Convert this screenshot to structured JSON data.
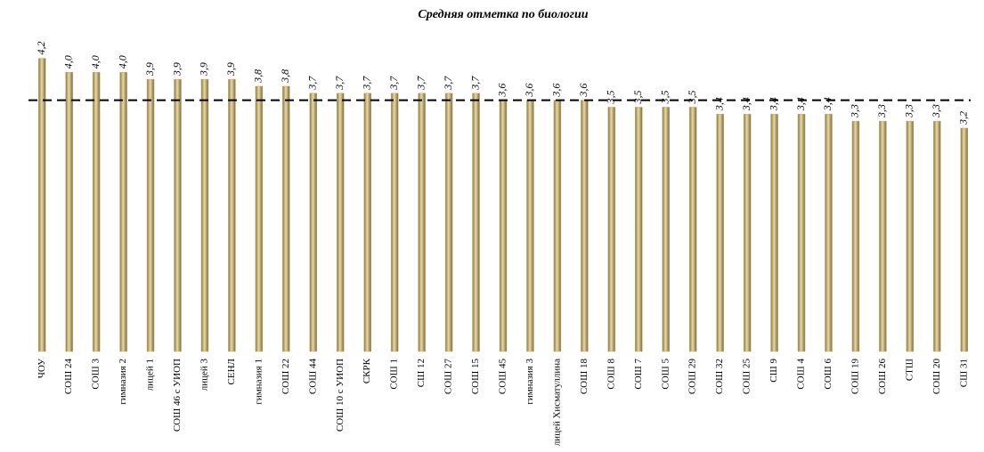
{
  "chart_data": {
    "type": "bar",
    "title": "Средняя отметка по биологии",
    "categories": [
      "ЧОУ",
      "СОШ 24",
      "СОШ 3",
      "гимназия 2",
      "лицей 1",
      "СОШ 46 с УИОП",
      "лицей 3",
      "СЕНЛ",
      "гимназия 1",
      "СОШ 22",
      "СОШ 44",
      "СОШ 10 с УИОП",
      "СКРК",
      "СОШ 1",
      "СШ 12",
      "СОШ 27",
      "СОШ 15",
      "СОШ 45",
      "гимназия 3",
      "лицей Хисматуллина",
      "СОШ 18",
      "СОШ 8",
      "СОШ 7",
      "СОШ 5",
      "СОШ 29",
      "СОШ 32",
      "СОШ 25",
      "СШ 9",
      "СОШ 4",
      "СОШ 6",
      "СОШ 19",
      "СОШ 26",
      "СТШ",
      "СОШ 20",
      "СШ 31"
    ],
    "values": [
      4.2,
      4.0,
      4.0,
      4.0,
      3.9,
      3.9,
      3.9,
      3.9,
      3.8,
      3.8,
      3.7,
      3.7,
      3.7,
      3.7,
      3.7,
      3.7,
      3.7,
      3.6,
      3.6,
      3.6,
      3.6,
      3.5,
      3.5,
      3.5,
      3.5,
      3.4,
      3.4,
      3.4,
      3.4,
      3.4,
      3.3,
      3.3,
      3.3,
      3.3,
      3.2
    ],
    "value_labels": [
      "4,2",
      "4,0",
      "4,0",
      "4,0",
      "3,9",
      "3,9",
      "3,9",
      "3,9",
      "3,8",
      "3,8",
      "3,7",
      "3,7",
      "3,7",
      "3,7",
      "3,7",
      "3,7",
      "3,7",
      "3,6",
      "3,6",
      "3,6",
      "3,6",
      "3,5",
      "3,5",
      "3,5",
      "3,5",
      "3,4",
      "3,4",
      "3,4",
      "3,4",
      "3,4",
      "3,3",
      "3,3",
      "3,3",
      "3,3",
      "3,2"
    ],
    "reference_line": 3.6,
    "color": "#c4ad6c",
    "ylim": [
      0,
      4.5
    ]
  }
}
